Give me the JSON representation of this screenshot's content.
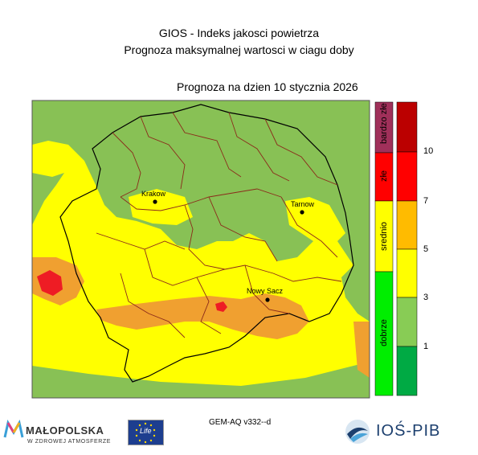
{
  "header": {
    "title_line1": "GIOS - Indeks jakosci powietrza",
    "title_line2": "Prognoza maksymalnej wartosci w ciagu doby",
    "forecast_date": "Prognoza na dzien  10 stycznia 2026"
  },
  "cities": [
    {
      "name": "Krakow"
    },
    {
      "name": "Tarnow"
    },
    {
      "name": "Nowy Sacz"
    }
  ],
  "legend": {
    "categories": [
      {
        "label": "bardzo złe",
        "color": "#a0305a"
      },
      {
        "label": "złe",
        "color": "#ff0000"
      },
      {
        "label": "srednio",
        "color": "#ffff00"
      },
      {
        "label": "dobrze",
        "color": "#00ee00"
      }
    ],
    "scale_colors": [
      "#00aa44",
      "#88cc55",
      "#ffff00",
      "#ffbb00",
      "#ff0000",
      "#bb0000"
    ],
    "ticks": [
      "1",
      "3",
      "5",
      "7",
      "10"
    ]
  },
  "colors": {
    "green": "#88c155",
    "yellow": "#ffff00",
    "light_orange": "#ffcc33",
    "orange": "#f0a030",
    "red": "#ee1c24"
  },
  "footer": {
    "model_label": "GEM-AQ v332--d",
    "logo_malopolska": "MAŁOPOLSKA",
    "logo_malopolska_sub": "W ZDROWEJ ATMOSFERZE",
    "logo_eu": "Life",
    "logo_iospib": "IOŚ-PIB"
  }
}
